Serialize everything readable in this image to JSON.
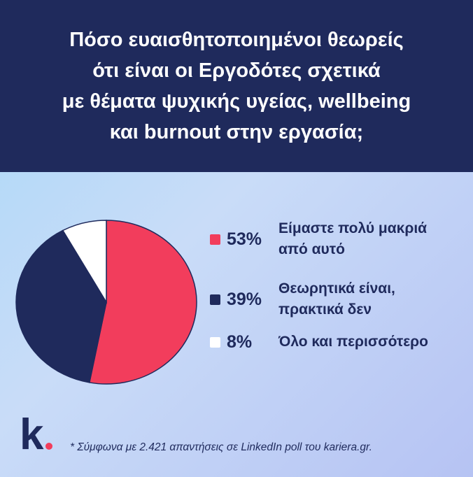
{
  "header": {
    "lines": [
      "Πόσο ευαισθητοποιημένοι θεωρείς",
      "ότι είναι οι Εργοδότες σχετικά",
      "με θέματα ψυχικής υγείας, wellbeing",
      "και burnout στην εργασία;"
    ]
  },
  "chart_data": {
    "type": "pie",
    "slices": [
      {
        "value": 53,
        "label": "53%",
        "text_lines": [
          "Είμαστε πολύ μακριά",
          "από αυτό"
        ],
        "color": "#f23d5c"
      },
      {
        "value": 39,
        "label": "39%",
        "text_lines": [
          "Θεωρητικά είναι,",
          "πρακτικά δεν"
        ],
        "color": "#1f2a5c"
      },
      {
        "value": 8,
        "label": "8%",
        "text_lines": [
          "Όλο και περισσότερο"
        ],
        "color": "#ffffff"
      }
    ],
    "start_direction": "12 o'clock",
    "direction": "clockwise",
    "legend": "right"
  },
  "colors": {
    "header_bg": "#1f2a5c",
    "accent": "#f23d5c",
    "navy": "#1f2a5c"
  },
  "logo": {
    "letter": "k"
  },
  "footnote": "* Σύμφωνα με 2.421 απαντήσεις σε LinkedIn poll του kariera.gr."
}
